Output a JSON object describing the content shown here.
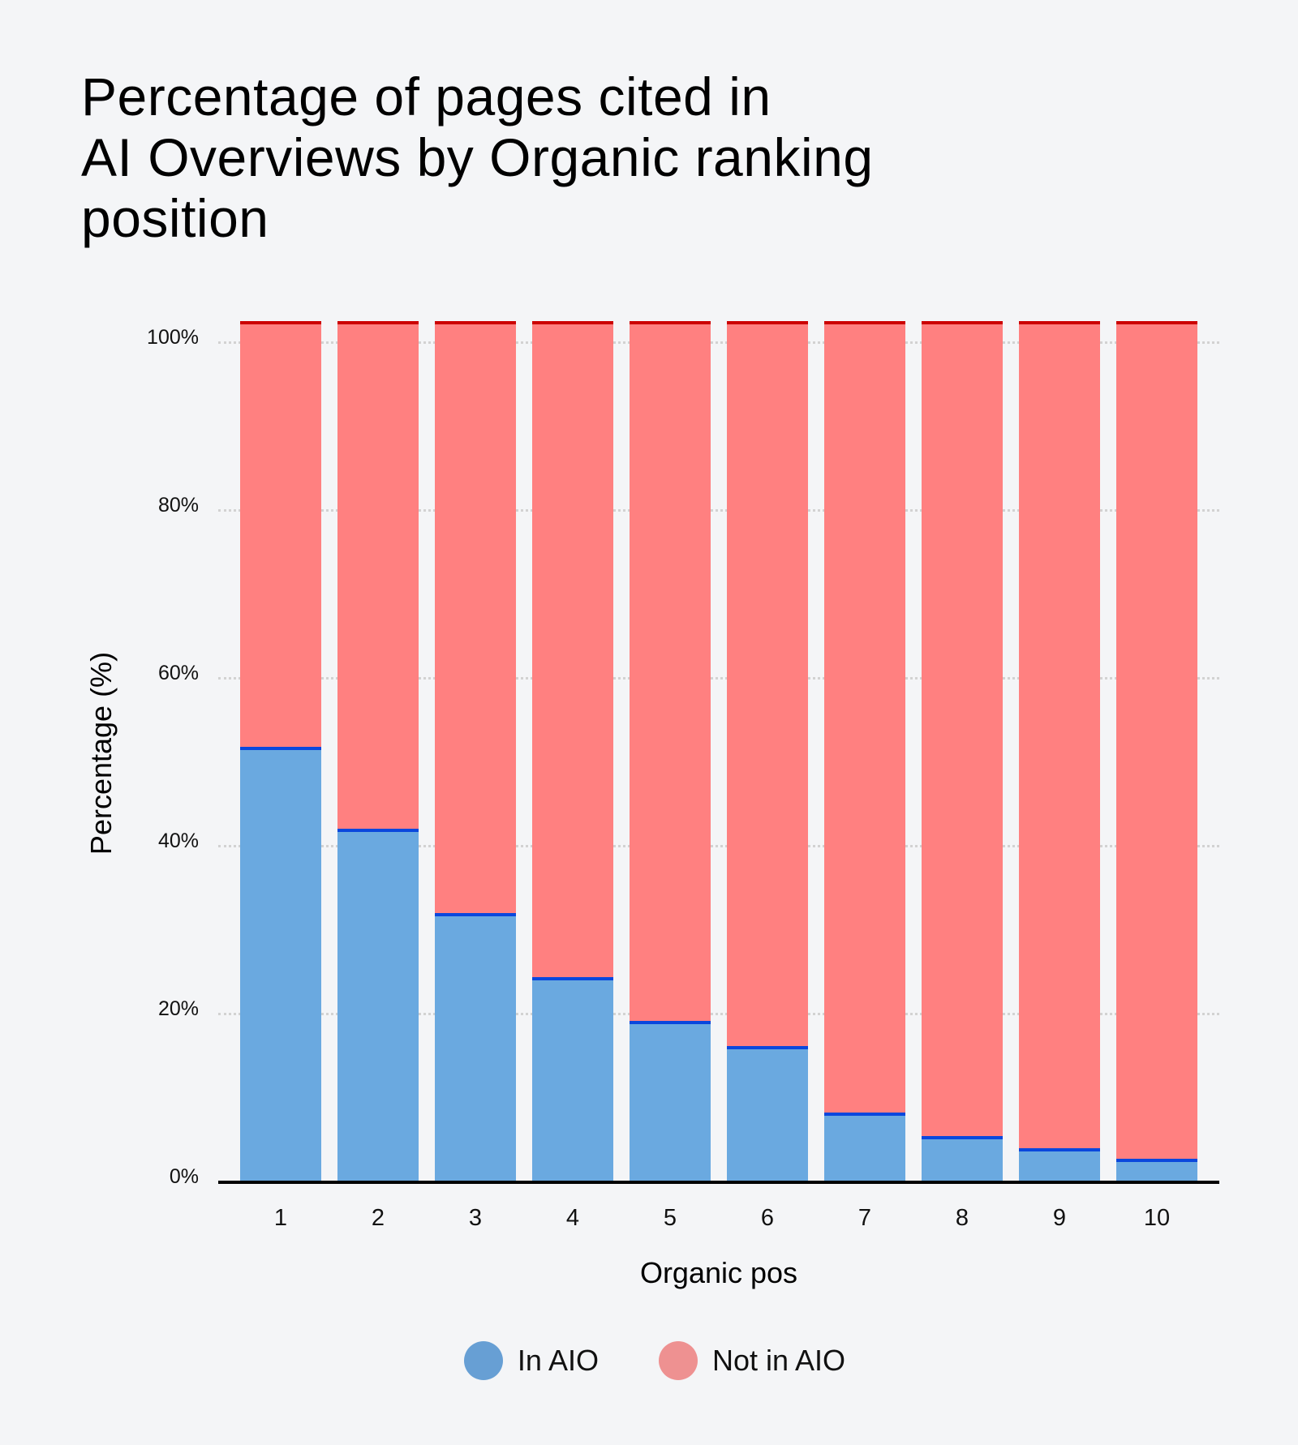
{
  "title": "Percentage of pages cited in AI Overviews by Organic ranking position",
  "title_lines": [
    "Percentage of pages cited in",
    "AI Overviews by Organic ranking",
    "position"
  ],
  "colors": {
    "background": "#f4f5f7",
    "in_aio_fill": "#6aa9e0",
    "in_aio_edge": "#0a47dd",
    "not_in_aio_fill": "#ff8080",
    "not_in_aio_edge": "#cc0000",
    "legend_in_aio": "#679fd4",
    "legend_not_in_aio": "#ee9191"
  },
  "axes": {
    "xlabel": "Organic pos",
    "ylabel": "Percentage (%)",
    "yticks": [
      "0%",
      "20%",
      "40%",
      "60%",
      "80%",
      "100%"
    ],
    "xticks": [
      "1",
      "2",
      "3",
      "4",
      "5",
      "6",
      "7",
      "8",
      "9",
      "10"
    ]
  },
  "legend": [
    {
      "label": "In AIO",
      "icon": "circle-marker-blue"
    },
    {
      "label": "Not in AIO",
      "icon": "circle-marker-pink"
    }
  ],
  "chart_data": {
    "type": "bar",
    "stacked": true,
    "title": "Percentage of pages cited in AI Overviews by Organic ranking position",
    "xlabel": "Organic pos",
    "ylabel": "Percentage (%)",
    "categories": [
      "1",
      "2",
      "3",
      "4",
      "5",
      "6",
      "7",
      "8",
      "9",
      "10"
    ],
    "series": [
      {
        "name": "In AIO",
        "color": "#6aa9e0",
        "values": [
          51.6,
          41.8,
          31.8,
          24.2,
          18.9,
          15.9,
          8.0,
          5.2,
          3.8,
          2.5
        ]
      },
      {
        "name": "Not in AIO",
        "color": "#ff8080",
        "values": [
          48.4,
          58.2,
          68.2,
          75.8,
          81.1,
          84.1,
          92.0,
          94.8,
          96.2,
          97.5
        ]
      }
    ],
    "ylim": [
      0,
      100
    ],
    "yticks": [
      0,
      20,
      40,
      60,
      80,
      100
    ],
    "ytick_format": "percent",
    "grid": {
      "y": true,
      "style": "dotted"
    },
    "legend_position": "bottom-center"
  }
}
